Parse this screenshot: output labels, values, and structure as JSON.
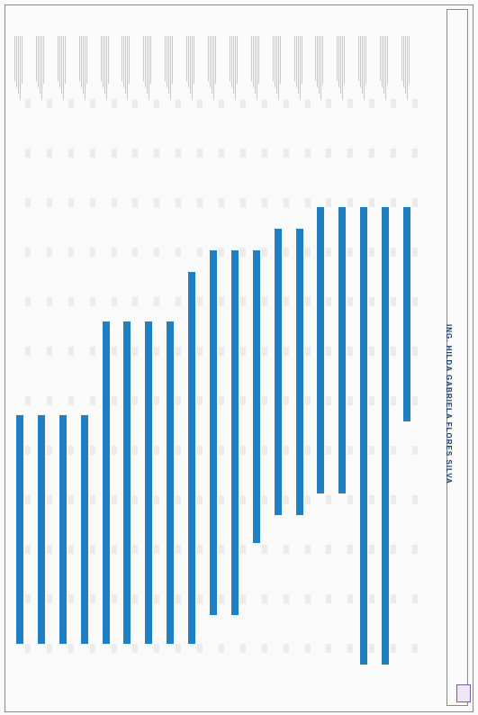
{
  "document": {
    "title": "ING. HILDA GABRIELA FLORES SILVA",
    "header_note": "",
    "subheader_note": ""
  },
  "gantt": {
    "bar_color": "#1f7fc0",
    "rows": [
      {
        "start": 0.58,
        "end": 0.9
      },
      {
        "start": 0.58,
        "end": 0.9
      },
      {
        "start": 0.58,
        "end": 0.9
      },
      {
        "start": 0.58,
        "end": 0.9
      },
      {
        "start": 0.45,
        "end": 0.9
      },
      {
        "start": 0.45,
        "end": 0.9
      },
      {
        "start": 0.45,
        "end": 0.9
      },
      {
        "start": 0.45,
        "end": 0.9
      },
      {
        "start": 0.38,
        "end": 0.9
      },
      {
        "start": 0.35,
        "end": 0.86
      },
      {
        "start": 0.35,
        "end": 0.86
      },
      {
        "start": 0.35,
        "end": 0.76
      },
      {
        "start": 0.32,
        "end": 0.72
      },
      {
        "start": 0.32,
        "end": 0.72
      },
      {
        "start": 0.29,
        "end": 0.69
      },
      {
        "start": 0.29,
        "end": 0.69
      },
      {
        "start": 0.29,
        "end": 0.93
      },
      {
        "start": 0.29,
        "end": 0.93
      },
      {
        "start": 0.29,
        "end": 0.59
      }
    ]
  }
}
